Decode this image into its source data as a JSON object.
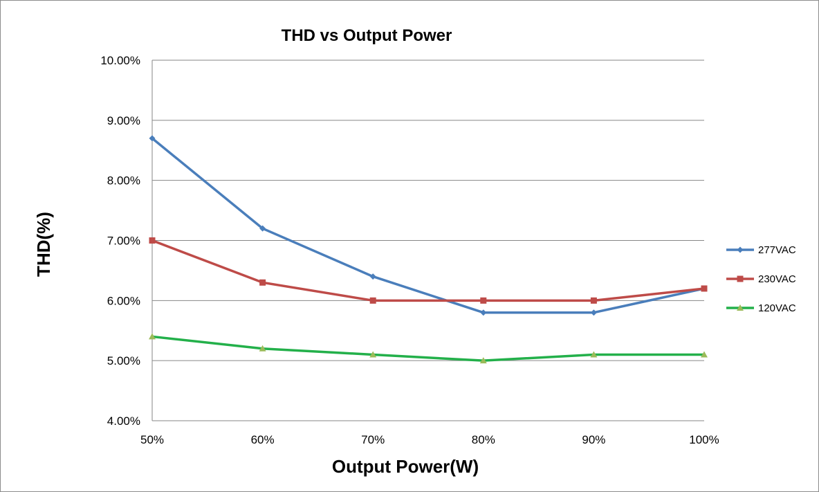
{
  "chart_data": {
    "type": "line",
    "title": "THD vs Output Power",
    "xlabel": "Output Power(W)",
    "ylabel": "THD(%)",
    "categories": [
      "50%",
      "60%",
      "70%",
      "80%",
      "90%",
      "100%"
    ],
    "ylim": [
      4,
      10
    ],
    "y_ticks": [
      {
        "value": 10,
        "label": "10.00%"
      },
      {
        "value": 9,
        "label": "9.00%"
      },
      {
        "value": 8,
        "label": "8.00%"
      },
      {
        "value": 7,
        "label": "7.00%"
      },
      {
        "value": 6,
        "label": "6.00%"
      },
      {
        "value": 5,
        "label": "5.00%"
      },
      {
        "value": 4,
        "label": "4.00%"
      }
    ],
    "grid": true,
    "legend_position": "right",
    "series": [
      {
        "name": "277VAC",
        "color": "#4a7ebb",
        "marker": "diamond",
        "values": [
          8.7,
          7.2,
          6.4,
          5.8,
          5.8,
          6.2
        ]
      },
      {
        "name": "230VAC",
        "color": "#be4b48",
        "marker": "square",
        "values": [
          7.0,
          6.3,
          6.0,
          6.0,
          6.0,
          6.2
        ]
      },
      {
        "name": "120VAC",
        "color": "#23b04a",
        "marker": "triangle",
        "marker_color": "#9bbb59",
        "values": [
          5.4,
          5.2,
          5.1,
          5.0,
          5.1,
          5.1
        ]
      }
    ]
  }
}
